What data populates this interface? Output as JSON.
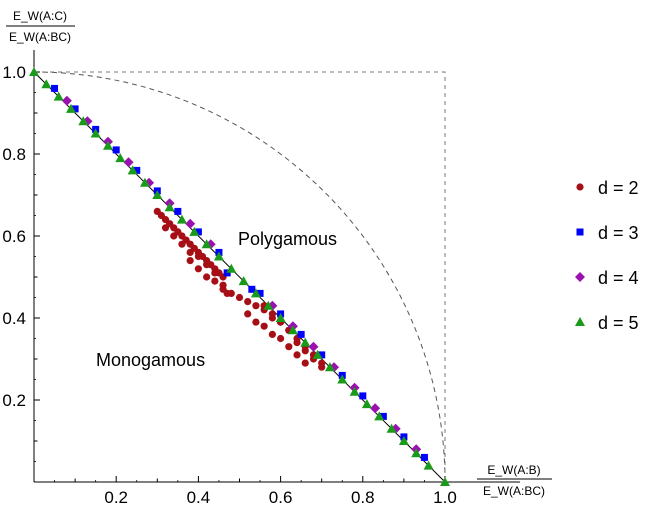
{
  "chart_data": {
    "type": "scatter",
    "title": "",
    "xlabel": {
      "numerator": "E_W(A:B)",
      "denominator": "E_W(A:BC)"
    },
    "ylabel": {
      "numerator": "E_W(A:C)",
      "denominator": "E_W(A:BC)"
    },
    "xlim": [
      0,
      1
    ],
    "ylim": [
      0,
      1
    ],
    "x_ticks": [
      "0.2",
      "0.4",
      "0.6",
      "0.8",
      "1.0"
    ],
    "y_ticks": [
      "0.2",
      "0.4",
      "0.6",
      "0.8",
      "1.0"
    ],
    "grid": false,
    "legend_position": "right",
    "reference_curves": [
      {
        "kind": "line",
        "description": "x + y = 1"
      },
      {
        "kind": "quarter-circle",
        "description": "x^2 + y^2 = 1"
      },
      {
        "kind": "box",
        "description": "x = 1 and y = 1"
      }
    ],
    "annotations": [
      {
        "text": "Polygamous",
        "x": 0.57,
        "y": 0.59
      },
      {
        "text": "Monogamous",
        "x": 0.17,
        "y": 0.29
      }
    ],
    "series": [
      {
        "name": "d = 2",
        "marker": "circle",
        "color": "#a50f15",
        "x": [
          0.3,
          0.31,
          0.32,
          0.33,
          0.34,
          0.35,
          0.36,
          0.37,
          0.38,
          0.39,
          0.4,
          0.41,
          0.42,
          0.43,
          0.44,
          0.45,
          0.46,
          0.32,
          0.34,
          0.36,
          0.38,
          0.4,
          0.42,
          0.44,
          0.46,
          0.38,
          0.4,
          0.42,
          0.44,
          0.46,
          0.47,
          0.48,
          0.5,
          0.52,
          0.54,
          0.56,
          0.58,
          0.6,
          0.62,
          0.64,
          0.66,
          0.68,
          0.7,
          0.52,
          0.54,
          0.56,
          0.58,
          0.6,
          0.62,
          0.64,
          0.66,
          0.56,
          0.58,
          0.6,
          0.62,
          0.64,
          0.66,
          0.68,
          0.7
        ],
        "y": [
          0.66,
          0.65,
          0.64,
          0.63,
          0.62,
          0.61,
          0.6,
          0.59,
          0.58,
          0.57,
          0.56,
          0.55,
          0.54,
          0.53,
          0.52,
          0.51,
          0.5,
          0.62,
          0.6,
          0.58,
          0.56,
          0.55,
          0.53,
          0.51,
          0.48,
          0.54,
          0.52,
          0.5,
          0.49,
          0.47,
          0.46,
          0.46,
          0.45,
          0.44,
          0.43,
          0.42,
          0.4,
          0.39,
          0.37,
          0.35,
          0.33,
          0.31,
          0.29,
          0.41,
          0.39,
          0.38,
          0.36,
          0.35,
          0.33,
          0.31,
          0.29,
          0.43,
          0.41,
          0.39,
          0.37,
          0.34,
          0.32,
          0.3,
          0.28
        ]
      },
      {
        "name": "d = 3",
        "marker": "square",
        "color": "#0000ff",
        "x": [
          0.05,
          0.1,
          0.15,
          0.2,
          0.25,
          0.3,
          0.35,
          0.4,
          0.45,
          0.47,
          0.53,
          0.55,
          0.6,
          0.65,
          0.7,
          0.75,
          0.8,
          0.85,
          0.9,
          0.95
        ],
        "y": [
          0.96,
          0.91,
          0.86,
          0.81,
          0.76,
          0.71,
          0.66,
          0.61,
          0.56,
          0.51,
          0.47,
          0.46,
          0.41,
          0.36,
          0.31,
          0.26,
          0.21,
          0.16,
          0.11,
          0.06
        ]
      },
      {
        "name": "d = 4",
        "marker": "diamond",
        "color": "#9b11b0",
        "x": [
          0.08,
          0.13,
          0.18,
          0.23,
          0.28,
          0.33,
          0.38,
          0.43,
          0.58,
          0.63,
          0.68,
          0.73,
          0.78,
          0.83,
          0.88,
          0.93
        ],
        "y": [
          0.93,
          0.88,
          0.83,
          0.78,
          0.73,
          0.68,
          0.63,
          0.58,
          0.43,
          0.38,
          0.33,
          0.28,
          0.23,
          0.18,
          0.13,
          0.08
        ]
      },
      {
        "name": "d = 5",
        "marker": "triangle",
        "color": "#1a9a1a",
        "x": [
          0.0,
          0.03,
          0.06,
          0.09,
          0.12,
          0.15,
          0.18,
          0.21,
          0.24,
          0.27,
          0.3,
          0.33,
          0.36,
          0.39,
          0.42,
          0.45,
          0.48,
          0.51,
          0.54,
          0.57,
          0.6,
          0.63,
          0.66,
          0.69,
          0.72,
          0.75,
          0.78,
          0.81,
          0.84,
          0.87,
          0.9,
          0.93,
          0.96,
          1.0
        ],
        "y": [
          1.0,
          0.97,
          0.94,
          0.91,
          0.88,
          0.85,
          0.82,
          0.79,
          0.76,
          0.73,
          0.7,
          0.67,
          0.64,
          0.61,
          0.58,
          0.55,
          0.52,
          0.49,
          0.46,
          0.43,
          0.4,
          0.37,
          0.34,
          0.31,
          0.28,
          0.25,
          0.22,
          0.19,
          0.16,
          0.13,
          0.1,
          0.07,
          0.04,
          0.0
        ]
      }
    ]
  }
}
